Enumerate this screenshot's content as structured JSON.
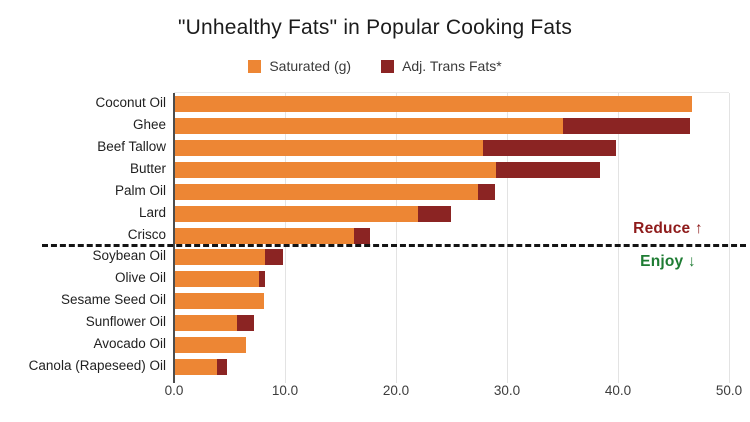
{
  "title": "\"Unhealthy Fats\" in Popular Cooking Fats",
  "legend": {
    "items": [
      {
        "label": "Saturated (g)",
        "color": "#ED8634"
      },
      {
        "label": "Adj. Trans Fats*",
        "color": "#8B2423"
      }
    ]
  },
  "annotations": {
    "reduce": {
      "label": "Reduce ↑",
      "color": "#8E1B1B"
    },
    "enjoy": {
      "label": "Enjoy ↓",
      "color": "#1E7C33"
    }
  },
  "chart_data": {
    "type": "bar",
    "orientation": "horizontal",
    "stacked": true,
    "title": "\"Unhealthy Fats\" in Popular Cooking Fats",
    "categories": [
      "Coconut Oil",
      "Ghee",
      "Beef Tallow",
      "Butter",
      "Palm Oil",
      "Lard",
      "Crisco",
      "Soybean Oil",
      "Olive Oil",
      "Sesame Seed Oil",
      "Sunflower Oil",
      "Avocado Oil",
      "Canola (Rapeseed) Oil"
    ],
    "series": [
      {
        "name": "Saturated (g)",
        "color": "#ED8634",
        "values": [
          46.7,
          35.0,
          27.8,
          29.0,
          27.4,
          22.0,
          16.2,
          8.2,
          7.7,
          8.1,
          5.7,
          6.5,
          3.9
        ]
      },
      {
        "name": "Adj. Trans Fats*",
        "color": "#8B2423",
        "values": [
          0,
          11.5,
          12.0,
          9.4,
          1.5,
          3.0,
          1.5,
          1.6,
          0.5,
          0,
          1.5,
          0,
          0.9
        ]
      }
    ],
    "xlim": [
      0,
      50
    ],
    "xticks": [
      "0.0",
      "10.0",
      "20.0",
      "30.0",
      "40.0",
      "50.0"
    ],
    "grid": "vertical-only",
    "legend_position": "top",
    "divider": {
      "after_category": "Crisco",
      "style": "black-dashed"
    }
  }
}
